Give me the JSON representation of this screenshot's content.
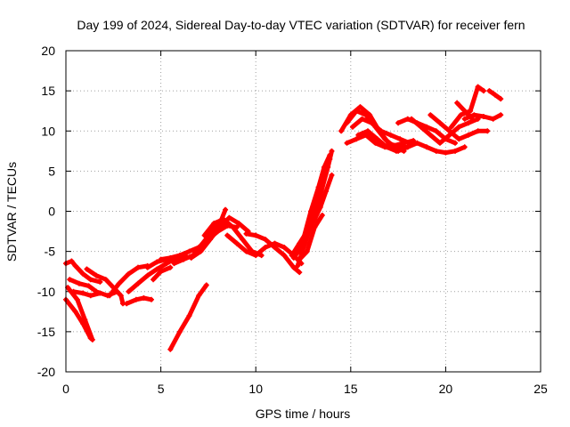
{
  "chart_data": {
    "type": "scatter",
    "title": "Day 199 of 2024, Sidereal Day-to-day VTEC variation (SDTVAR) for receiver fern",
    "xlabel": "GPS time / hours",
    "ylabel": "SDTVAR / TECUs",
    "xlim": [
      0,
      25
    ],
    "ylim": [
      -20,
      20
    ],
    "xticks": [
      "0",
      "5",
      "10",
      "15",
      "20",
      "25"
    ],
    "yticks": [
      "20",
      "15",
      "10",
      "5",
      "0",
      "-5",
      "-10",
      "-15",
      "-20"
    ],
    "grid": true,
    "series_color": "#ff0000",
    "series": [
      {
        "points": [
          [
            0.0,
            -11.0
          ],
          [
            0.5,
            -12.5
          ],
          [
            0.9,
            -14.0
          ],
          [
            1.3,
            -15.8
          ]
        ]
      },
      {
        "points": [
          [
            0.1,
            -9.5
          ],
          [
            0.6,
            -11.0
          ],
          [
            1.0,
            -13.5
          ],
          [
            1.4,
            -16.0
          ]
        ]
      },
      {
        "points": [
          [
            0.2,
            -8.5
          ],
          [
            0.7,
            -9.0
          ],
          [
            1.2,
            -9.3
          ],
          [
            1.6,
            -10.0
          ],
          [
            2.2,
            -10.5
          ],
          [
            2.7,
            -10.0
          ]
        ]
      },
      {
        "points": [
          [
            0.0,
            -6.5
          ],
          [
            0.3,
            -6.2
          ],
          [
            0.5,
            -6.8
          ],
          [
            0.9,
            -7.8
          ],
          [
            1.3,
            -8.5
          ],
          [
            1.8,
            -8.8
          ]
        ]
      },
      {
        "points": [
          [
            0.4,
            -10.0
          ],
          [
            0.9,
            -10.2
          ],
          [
            1.3,
            -10.5
          ],
          [
            1.8,
            -10.2
          ]
        ]
      },
      {
        "points": [
          [
            1.1,
            -7.2
          ],
          [
            1.6,
            -8.0
          ],
          [
            2.1,
            -8.5
          ],
          [
            2.5,
            -9.5
          ],
          [
            2.9,
            -10.5
          ],
          [
            3.0,
            -11.5
          ]
        ]
      },
      {
        "points": [
          [
            2.3,
            -10.5
          ],
          [
            2.8,
            -9.0
          ],
          [
            3.3,
            -7.8
          ],
          [
            3.8,
            -7.0
          ],
          [
            4.3,
            -6.8
          ]
        ]
      },
      {
        "points": [
          [
            3.2,
            -11.5
          ],
          [
            3.7,
            -11.0
          ],
          [
            4.1,
            -10.8
          ],
          [
            4.5,
            -11.0
          ]
        ]
      },
      {
        "points": [
          [
            3.3,
            -10.0
          ],
          [
            3.8,
            -9.0
          ],
          [
            4.3,
            -8.0
          ],
          [
            4.8,
            -7.2
          ],
          [
            5.3,
            -6.5
          ],
          [
            5.8,
            -5.8
          ],
          [
            6.3,
            -5.5
          ]
        ]
      },
      {
        "points": [
          [
            4.3,
            -7.0
          ],
          [
            4.8,
            -6.3
          ],
          [
            5.3,
            -6.0
          ],
          [
            5.8,
            -6.0
          ],
          [
            6.3,
            -5.8
          ]
        ]
      },
      {
        "points": [
          [
            4.6,
            -8.5
          ],
          [
            5.0,
            -7.5
          ],
          [
            5.5,
            -7.0
          ]
        ]
      },
      {
        "points": [
          [
            5.0,
            -6.0
          ],
          [
            5.5,
            -5.8
          ],
          [
            6.0,
            -5.5
          ],
          [
            6.5,
            -5.0
          ],
          [
            7.0,
            -4.5
          ],
          [
            7.5,
            -3.5
          ],
          [
            8.0,
            -2.5
          ],
          [
            8.5,
            -1.8
          ],
          [
            9.0,
            -2.0
          ]
        ]
      },
      {
        "points": [
          [
            5.7,
            -6.5
          ],
          [
            6.2,
            -6.0
          ],
          [
            6.7,
            -5.5
          ],
          [
            7.2,
            -4.0
          ],
          [
            7.7,
            -2.5
          ],
          [
            8.2,
            -1.0
          ],
          [
            8.4,
            0.2
          ]
        ]
      },
      {
        "points": [
          [
            6.6,
            -5.8
          ],
          [
            7.1,
            -5.0
          ],
          [
            7.6,
            -3.5
          ],
          [
            8.1,
            -2.0
          ],
          [
            8.6,
            -0.8
          ],
          [
            9.1,
            -1.5
          ],
          [
            9.6,
            -2.5
          ]
        ]
      },
      {
        "points": [
          [
            7.3,
            -3.0
          ],
          [
            7.8,
            -1.5
          ],
          [
            8.3,
            -1.0
          ],
          [
            8.8,
            -2.0
          ],
          [
            9.3,
            -3.5
          ],
          [
            9.8,
            -5.0
          ],
          [
            10.3,
            -5.5
          ]
        ]
      },
      {
        "points": [
          [
            8.5,
            -3.0
          ],
          [
            9.0,
            -4.0
          ],
          [
            9.5,
            -5.0
          ],
          [
            10.0,
            -5.5
          ],
          [
            10.5,
            -4.5
          ],
          [
            11.0,
            -4.0
          ],
          [
            11.5,
            -4.5
          ],
          [
            12.0,
            -5.5
          ],
          [
            12.4,
            -6.5
          ]
        ]
      },
      {
        "points": [
          [
            9.5,
            -2.8
          ],
          [
            10.0,
            -3.0
          ],
          [
            10.5,
            -3.5
          ],
          [
            11.0,
            -4.5
          ],
          [
            11.5,
            -5.5
          ],
          [
            12.0,
            -7.0
          ],
          [
            12.3,
            -7.6
          ]
        ]
      },
      {
        "points": [
          [
            5.5,
            -17.2
          ],
          [
            6.0,
            -15.0
          ],
          [
            6.5,
            -13.0
          ],
          [
            7.0,
            -10.5
          ],
          [
            7.4,
            -9.2
          ]
        ]
      },
      {
        "points": [
          [
            12.0,
            -5.8
          ],
          [
            12.4,
            -4.5
          ],
          [
            12.8,
            -2.0
          ],
          [
            13.2,
            1.0
          ],
          [
            13.6,
            4.0
          ],
          [
            13.9,
            6.5
          ]
        ]
      },
      {
        "points": [
          [
            12.2,
            -6.8
          ],
          [
            12.6,
            -4.0
          ],
          [
            13.0,
            -1.0
          ],
          [
            13.4,
            2.0
          ],
          [
            13.8,
            5.5
          ],
          [
            14.0,
            7.5
          ]
        ]
      },
      {
        "points": [
          [
            11.9,
            -5.5
          ],
          [
            12.3,
            -4.0
          ],
          [
            12.7,
            -2.5
          ],
          [
            13.1,
            -1.0
          ],
          [
            13.4,
            0.5
          ],
          [
            13.7,
            2.5
          ],
          [
            14.0,
            4.5
          ]
        ]
      },
      {
        "points": [
          [
            12.5,
            -3.5
          ],
          [
            12.9,
            0.0
          ],
          [
            13.3,
            3.0
          ],
          [
            13.6,
            5.5
          ],
          [
            13.9,
            7.0
          ]
        ]
      },
      {
        "points": [
          [
            12.3,
            -6.0
          ],
          [
            12.7,
            -5.0
          ],
          [
            13.1,
            -2.0
          ],
          [
            13.5,
            -0.5
          ]
        ]
      },
      {
        "points": [
          [
            14.8,
            8.5
          ],
          [
            15.3,
            9.0
          ],
          [
            15.8,
            9.5
          ],
          [
            16.3,
            8.5
          ],
          [
            16.8,
            8.0
          ],
          [
            17.3,
            8.2
          ],
          [
            17.8,
            8.5
          ],
          [
            18.3,
            8.8
          ]
        ]
      },
      {
        "points": [
          [
            14.5,
            10.0
          ],
          [
            15.0,
            12.0
          ],
          [
            15.5,
            13.0
          ],
          [
            16.0,
            12.0
          ],
          [
            16.5,
            10.0
          ],
          [
            17.0,
            8.5
          ],
          [
            17.5,
            7.5
          ],
          [
            18.0,
            8.0
          ]
        ]
      },
      {
        "points": [
          [
            14.8,
            11.0
          ],
          [
            15.3,
            12.5
          ],
          [
            15.8,
            12.0
          ],
          [
            16.3,
            10.5
          ],
          [
            16.8,
            9.0
          ],
          [
            17.3,
            8.0
          ],
          [
            17.8,
            7.5
          ]
        ]
      },
      {
        "points": [
          [
            15.1,
            10.5
          ],
          [
            15.6,
            11.5
          ],
          [
            16.1,
            11.0
          ],
          [
            16.6,
            10.0
          ],
          [
            17.1,
            9.5
          ],
          [
            17.6,
            9.0
          ],
          [
            18.1,
            8.5
          ]
        ]
      },
      {
        "points": [
          [
            15.4,
            9.5
          ],
          [
            15.9,
            10.0
          ],
          [
            16.4,
            9.0
          ],
          [
            16.9,
            8.0
          ],
          [
            17.4,
            7.5
          ]
        ]
      },
      {
        "points": [
          [
            17.0,
            8.5
          ],
          [
            17.5,
            8.0
          ],
          [
            18.0,
            8.0
          ],
          [
            18.5,
            8.5
          ],
          [
            19.0,
            8.0
          ],
          [
            19.5,
            7.5
          ],
          [
            20.0,
            7.3
          ],
          [
            20.5,
            7.5
          ],
          [
            21.0,
            8.0
          ]
        ]
      },
      {
        "points": [
          [
            17.5,
            11.0
          ],
          [
            18.0,
            11.5
          ],
          [
            18.5,
            11.0
          ],
          [
            19.0,
            10.5
          ],
          [
            19.5,
            10.0
          ],
          [
            20.0,
            9.0
          ],
          [
            20.5,
            8.5
          ]
        ]
      },
      {
        "points": [
          [
            18.2,
            11.5
          ],
          [
            18.7,
            10.5
          ],
          [
            19.2,
            9.5
          ],
          [
            19.7,
            8.5
          ],
          [
            20.2,
            9.5
          ],
          [
            20.7,
            10.5
          ],
          [
            21.2,
            11.0
          ],
          [
            21.7,
            11.5
          ]
        ]
      },
      {
        "points": [
          [
            19.2,
            12.0
          ],
          [
            19.7,
            11.0
          ],
          [
            20.2,
            10.0
          ],
          [
            20.7,
            9.0
          ],
          [
            21.2,
            9.5
          ],
          [
            21.7,
            10.0
          ],
          [
            22.2,
            10.0
          ]
        ]
      },
      {
        "points": [
          [
            20.3,
            10.5
          ],
          [
            20.8,
            12.0
          ],
          [
            21.3,
            12.5
          ],
          [
            21.7,
            15.5
          ],
          [
            22.0,
            15.0
          ]
        ]
      },
      {
        "points": [
          [
            21.0,
            11.5
          ],
          [
            21.5,
            12.0
          ],
          [
            22.0,
            11.8
          ],
          [
            22.5,
            11.5
          ],
          [
            22.9,
            12.0
          ]
        ]
      },
      {
        "points": [
          [
            22.3,
            15.0
          ],
          [
            22.6,
            14.5
          ],
          [
            22.9,
            14.0
          ]
        ]
      },
      {
        "points": [
          [
            20.6,
            13.5
          ],
          [
            21.0,
            12.5
          ],
          [
            21.4,
            11.5
          ]
        ]
      }
    ]
  }
}
